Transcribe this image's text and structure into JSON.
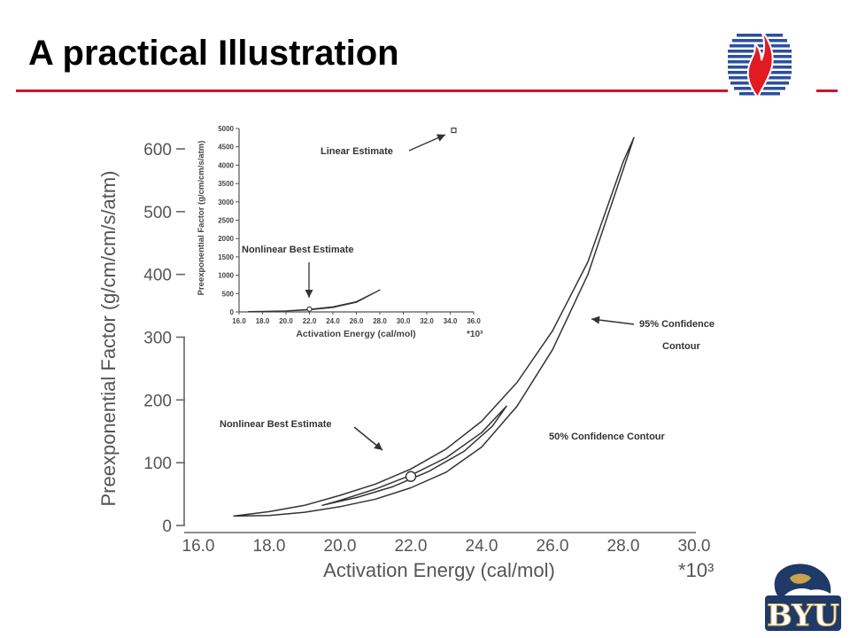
{
  "slide": {
    "title": "A practical Illustration",
    "accent_color": "#d4122a",
    "top_logo_icon": "flame-globe-logo-icon",
    "bottom_logo_icon": "byu-cougar-logo-icon",
    "bottom_logo_text": "BYU"
  },
  "chart_data": [
    {
      "type": "line",
      "title": "",
      "xlabel": "Activation Energy (cal/mol)",
      "x_multiplier": "*10³",
      "ylabel": "Preexponential Factor (g/cm/cm/s/atm)",
      "xlim": [
        16.0,
        30.0
      ],
      "ylim": [
        0,
        650
      ],
      "x_ticks": [
        "16.0",
        "18.0",
        "20.0",
        "22.0",
        "24.0",
        "26.0",
        "28.0",
        "30.0"
      ],
      "y_ticks": [
        "0",
        "100",
        "200",
        "300",
        "400",
        "500",
        "600"
      ],
      "grid": false,
      "series": [
        {
          "name": "95% Confidence Contour",
          "x": [
            17.0,
            18.0,
            19.0,
            20.0,
            21.0,
            22.0,
            23.0,
            24.0,
            25.0,
            26.0,
            27.0,
            28.0,
            28.3,
            27.0,
            26.0,
            25.0,
            24.0,
            23.0,
            22.0,
            21.0,
            20.0,
            19.0,
            18.0,
            17.0
          ],
          "y": [
            15,
            22,
            32,
            48,
            66,
            90,
            122,
            166,
            228,
            310,
            420,
            580,
            618,
            400,
            280,
            190,
            125,
            85,
            60,
            42,
            30,
            21,
            16,
            15
          ]
        },
        {
          "name": "50% Confidence Contour",
          "x": [
            19.5,
            20.5,
            21.5,
            22.5,
            23.5,
            24.3,
            24.7,
            24.0,
            23.0,
            22.0,
            21.0,
            20.0,
            19.5
          ],
          "y": [
            32,
            45,
            62,
            86,
            118,
            158,
            190,
            148,
            108,
            80,
            58,
            40,
            32
          ]
        }
      ],
      "points": [
        {
          "name": "Nonlinear Best Estimate",
          "x": 22.0,
          "y": 78
        }
      ],
      "annotations": [
        {
          "text": "Nonlinear Best Estimate",
          "x": 21.5,
          "y": 120
        },
        {
          "text": "95% Confidence Contour",
          "x": 28.5,
          "y": 320
        },
        {
          "text": "50% Confidence Contour",
          "x": 26.0,
          "y": 140
        }
      ],
      "label_lines": {
        "ann_95_line1": "95% Confidence",
        "ann_95_line2": "Contour"
      }
    },
    {
      "type": "line",
      "title": "",
      "xlabel": "Activation Energy (cal/mol)",
      "x_multiplier": "*10³",
      "ylabel": "Preexponential Factor (g/cm/cm/s/atm)",
      "xlim": [
        16.0,
        36.0
      ],
      "ylim": [
        0,
        5000
      ],
      "x_ticks": [
        "16.0",
        "18.0",
        "20.0",
        "22.0",
        "24.0",
        "26.0",
        "28.0",
        "30.0",
        "32.0",
        "34.0",
        "36.0"
      ],
      "y_ticks": [
        "0",
        "500",
        "1000",
        "1500",
        "2000",
        "2500",
        "3000",
        "3500",
        "4000",
        "4500",
        "5000"
      ],
      "grid": false,
      "series": [
        {
          "name": "95% Confidence Contour",
          "x": [
            16.8,
            18.0,
            20.0,
            22.0,
            24.0,
            26.0,
            28.0,
            26.0,
            24.0,
            22.0,
            20.0,
            18.0,
            16.8
          ],
          "y": [
            10,
            15,
            30,
            70,
            140,
            280,
            600,
            260,
            120,
            55,
            25,
            12,
            10
          ]
        }
      ],
      "points": [
        {
          "name": "Nonlinear Best Estimate",
          "x": 22.0,
          "y": 78
        },
        {
          "name": "Linear Estimate",
          "x": 34.3,
          "y": 4950
        }
      ],
      "annotations": [
        {
          "text": "Linear Estimate",
          "x": 24.5,
          "y": 4300
        },
        {
          "text": "Nonlinear Best Estimate",
          "x": 21.5,
          "y": 1600
        }
      ]
    }
  ]
}
